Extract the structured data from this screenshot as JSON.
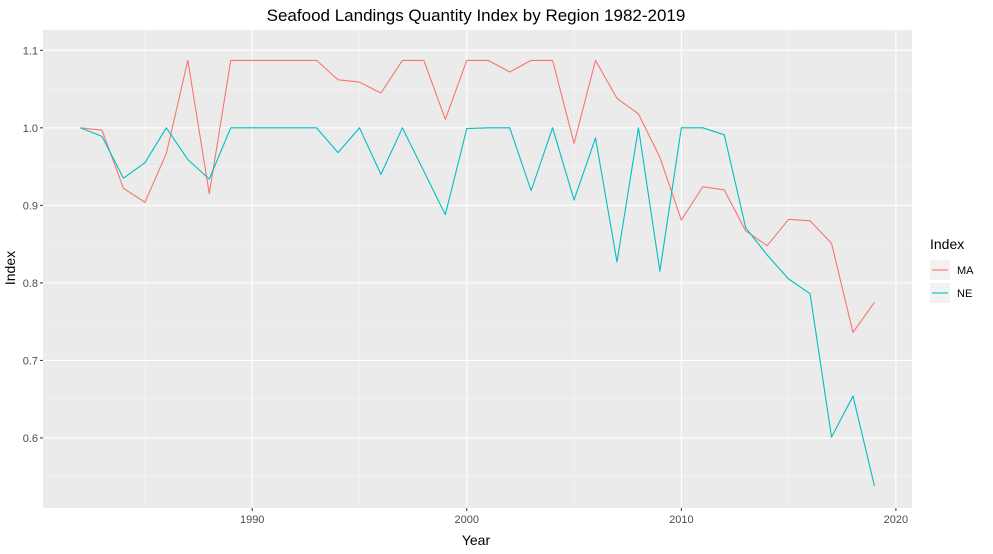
{
  "chart_data": {
    "type": "line",
    "title": "Seafood Landings Quantity Index by Region 1982-2019",
    "xlabel": "Year",
    "ylabel": "Index",
    "xlim": [
      1980.25,
      2020.75
    ],
    "ylim": [
      0.5096,
      1.1262
    ],
    "x_ticks": [
      1990,
      2000,
      2010,
      2020
    ],
    "y_ticks": [
      0.6,
      0.7,
      0.8,
      0.9,
      1.0,
      1.1
    ],
    "y_tick_labels": [
      "0.6",
      "0.7",
      "0.8",
      "0.9",
      "1.0",
      "1.1"
    ],
    "grid": true,
    "legend": {
      "title": "Index",
      "position": "right"
    },
    "x": [
      1982,
      1983,
      1984,
      1985,
      1986,
      1987,
      1988,
      1989,
      1990,
      1991,
      1992,
      1993,
      1994,
      1995,
      1996,
      1997,
      1998,
      1999,
      2000,
      2001,
      2002,
      2003,
      2004,
      2005,
      2006,
      2007,
      2008,
      2009,
      2010,
      2011,
      2012,
      2013,
      2014,
      2015,
      2016,
      2017,
      2018,
      2019
    ],
    "series": [
      {
        "name": "MA",
        "color": "#f8766d",
        "values": [
          1.0,
          0.997,
          0.922,
          0.904,
          0.967,
          1.087,
          0.915,
          1.087,
          1.087,
          1.087,
          1.087,
          1.087,
          1.062,
          1.059,
          1.045,
          1.087,
          1.087,
          1.011,
          1.087,
          1.087,
          1.072,
          1.087,
          1.087,
          0.98,
          1.087,
          1.038,
          1.018,
          0.962,
          0.881,
          0.924,
          0.92,
          0.867,
          0.848,
          0.882,
          0.88,
          0.851,
          0.736,
          0.775
        ]
      },
      {
        "name": "NE",
        "color": "#00bfc4",
        "values": [
          1.0,
          0.989,
          0.935,
          0.955,
          1.0,
          0.959,
          0.934,
          1.0,
          1.0,
          1.0,
          1.0,
          1.0,
          0.968,
          1.0,
          0.94,
          1.0,
          0.944,
          0.888,
          0.999,
          1.0,
          1.0,
          0.919,
          1.0,
          0.907,
          0.987,
          0.827,
          1.0,
          0.815,
          1.0,
          1.0,
          0.991,
          0.871,
          0.836,
          0.805,
          0.786,
          0.601,
          0.654,
          0.538
        ]
      }
    ]
  }
}
